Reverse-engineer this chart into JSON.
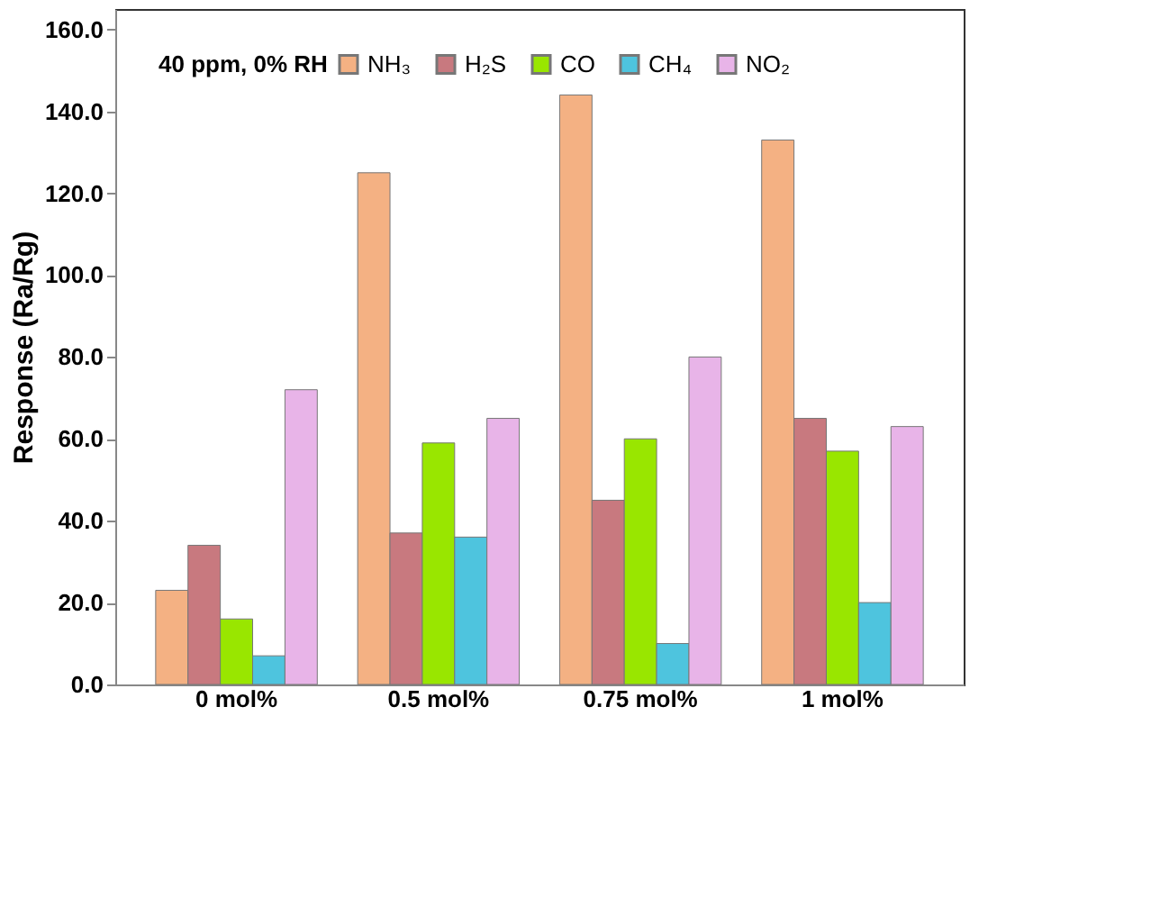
{
  "chart_data": {
    "type": "bar",
    "ylabel": "Response (Ra/Rg)",
    "legend_title": "40 ppm, 0% RH",
    "legend": "top left",
    "grid": false,
    "categories": [
      "0 mol%",
      "0.5 mol%",
      "0.75 mol%",
      "1 mol%"
    ],
    "ylim": [
      0,
      165
    ],
    "yticks": [
      {
        "value": 0,
        "label": "0.0"
      },
      {
        "value": 20,
        "label": "20.0"
      },
      {
        "value": 40,
        "label": "40.0"
      },
      {
        "value": 60,
        "label": "60.0"
      },
      {
        "value": 80,
        "label": "80.0"
      },
      {
        "value": 100,
        "label": "100.0"
      },
      {
        "value": 120,
        "label": "120.0"
      },
      {
        "value": 140,
        "label": "140.0"
      },
      {
        "value": 160,
        "label": "160.0"
      }
    ],
    "series": [
      {
        "name": "NH₃",
        "color": "#f4b183",
        "values": [
          23,
          125,
          144,
          133
        ]
      },
      {
        "name": "H₂S",
        "color": "#c8797f",
        "values": [
          34,
          37,
          45,
          65
        ]
      },
      {
        "name": "CO",
        "color": "#99e600",
        "values": [
          16,
          59,
          60,
          57
        ]
      },
      {
        "name": "CH₄",
        "color": "#4ec4de",
        "values": [
          7,
          36,
          10,
          20
        ]
      },
      {
        "name": "NO₂",
        "color": "#e8b4e8",
        "values": [
          72,
          65,
          80,
          63
        ]
      }
    ]
  }
}
